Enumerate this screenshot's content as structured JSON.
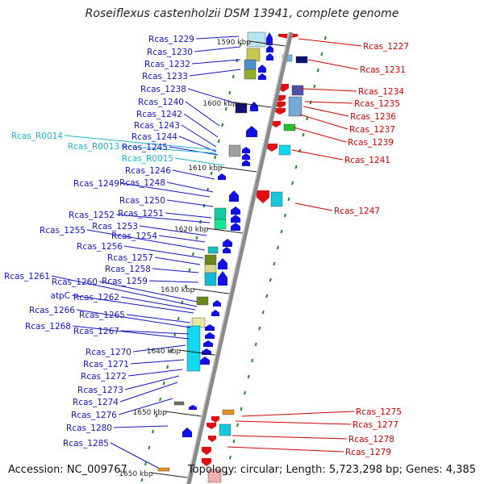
{
  "title": "Roseiflexus castenholzii DSM 13941, complete genome",
  "accession": "Accession: NC_009767",
  "topology": "Topology: circular; Length: 5,723,298 bp; Genes: 4,385",
  "colors": {
    "left_label": "#1414c8",
    "rna_label": "#19b4d2",
    "right_label": "#d20000",
    "backbone": "#888888"
  },
  "kbp_ticks": [
    "1590 kbp",
    "1600 kbp",
    "1610 kbp",
    "1620 kbp",
    "1630 kbp",
    "1640 kbp",
    "1650 kbp",
    "1650 kbp"
  ],
  "left_labels": [
    "Rcas_1229",
    "Rcas_1230",
    "Rcas_1232",
    "Rcas_1233",
    "Rcas_1238",
    "Rcas_1240",
    "Rcas_1242",
    "Rcas_1243",
    "Rcas_1244",
    "Rcas_1245",
    "Rcas_1246",
    "Rcas_1248",
    "Rcas_1249",
    "Rcas_1250",
    "Rcas_1251",
    "Rcas_1252",
    "Rcas_1253",
    "Rcas_1254",
    "Rcas_1255",
    "Rcas_1256",
    "Rcas_1257",
    "Rcas_1258",
    "Rcas_1259",
    "Rcas_1260",
    "Rcas_1261",
    "Rcas_1262",
    "atpC",
    "Rcas_1265",
    "Rcas_1266",
    "Rcas_1267",
    "Rcas_1268",
    "Rcas_1270",
    "Rcas_1271",
    "Rcas_1272",
    "Rcas_1273",
    "Rcas_1274",
    "Rcas_1276",
    "Rcas_1280",
    "Rcas_1285"
  ],
  "rna_labels": [
    "Rcas_R0014",
    "Rcas_R0013",
    "Rcas_R0015"
  ],
  "right_labels": [
    "Rcas_1227",
    "Rcas_1231",
    "Rcas_1234",
    "Rcas_1235",
    "Rcas_1236",
    "Rcas_1237",
    "Rcas_1239",
    "Rcas_1241",
    "Rcas_1247",
    "Rcas_1275",
    "Rcas_1277",
    "Rcas_1278",
    "Rcas_1279"
  ]
}
